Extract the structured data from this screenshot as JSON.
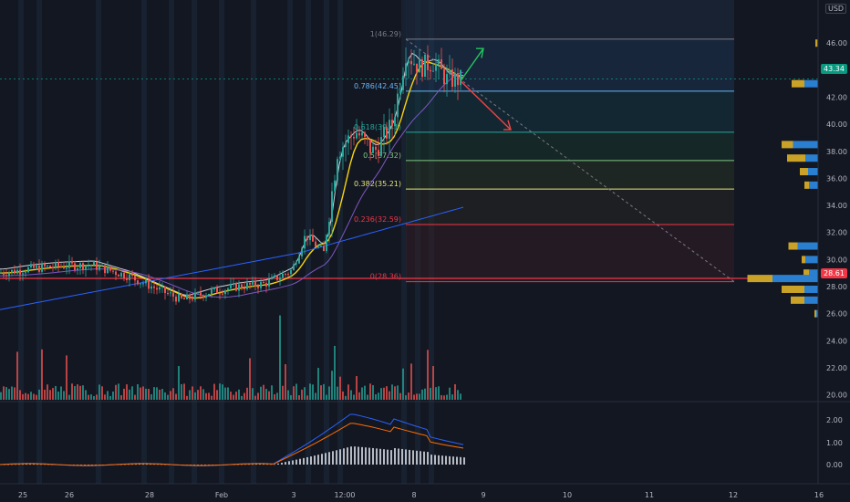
{
  "currency": "USD",
  "price_badges": {
    "last": "43.34",
    "level": "28.61"
  },
  "fib_labels": [
    {
      "text": "1(46.29)",
      "price": 46.29,
      "color": "#787b86"
    },
    {
      "text": "0.786(42.45)",
      "price": 42.45,
      "color": "#64b5f6"
    },
    {
      "text": "0.618(39.41)",
      "price": 39.41,
      "color": "#26a69a"
    },
    {
      "text": "0.5(37.32)",
      "price": 37.32,
      "color": "#81c784"
    },
    {
      "text": "0.382(35.21)",
      "price": 35.21,
      "color": "#e4e77a"
    },
    {
      "text": "0.236(32.59)",
      "price": 32.59,
      "color": "#f23645"
    },
    {
      "text": "0(28.36)",
      "price": 28.36,
      "color": "#f23645"
    }
  ],
  "chart_data": {
    "type": "candlestick",
    "price_axis": {
      "ticks": [
        "46.00",
        "44.00",
        "42.00",
        "40.00",
        "38.00",
        "36.00",
        "34.00",
        "32.00",
        "30.00",
        "28.00",
        "26.00",
        "24.00",
        "22.00",
        "20.00"
      ],
      "ylim": [
        19.5,
        47.5
      ]
    },
    "indicator_axis": {
      "ticks": [
        "2.00",
        "1.00",
        "0.00"
      ]
    },
    "time_axis": {
      "ticks": [
        "25",
        "26",
        "28",
        "Feb",
        "3",
        "12:00",
        "8",
        "9",
        "10",
        "11",
        "12",
        "16"
      ]
    },
    "price_path": [
      [
        0,
        29.0
      ],
      [
        30,
        29.3
      ],
      [
        60,
        29.5
      ],
      [
        100,
        29.6
      ],
      [
        140,
        28.8
      ],
      [
        180,
        27.6
      ],
      [
        200,
        27.0
      ],
      [
        230,
        27.6
      ],
      [
        260,
        28.0
      ],
      [
        290,
        28.2
      ],
      [
        320,
        29.2
      ],
      [
        335,
        31.8
      ],
      [
        355,
        30.5
      ],
      [
        370,
        38.0
      ],
      [
        390,
        39.5
      ],
      [
        410,
        37.9
      ],
      [
        430,
        40.0
      ],
      [
        445,
        45.3
      ],
      [
        460,
        44.2
      ],
      [
        475,
        44.6
      ],
      [
        490,
        43.3
      ],
      [
        505,
        43.3
      ]
    ],
    "volume_profile": [
      {
        "price": 46.0,
        "up": 2,
        "down": 4
      },
      {
        "price": 43.0,
        "up": 30,
        "down": 28
      },
      {
        "price": 38.5,
        "up": 55,
        "down": 25
      },
      {
        "price": 37.5,
        "up": 28,
        "down": 40
      },
      {
        "price": 36.5,
        "up": 22,
        "down": 18
      },
      {
        "price": 35.5,
        "up": 20,
        "down": 10
      },
      {
        "price": 31.0,
        "up": 45,
        "down": 20
      },
      {
        "price": 30.0,
        "up": 28,
        "down": 8
      },
      {
        "price": 29.0,
        "up": 20,
        "down": 12
      },
      {
        "price": 28.6,
        "up": 100,
        "down": 55
      },
      {
        "price": 27.8,
        "up": 30,
        "down": 50
      },
      {
        "price": 27.0,
        "up": 30,
        "down": 30
      },
      {
        "price": 26.0,
        "up": 4,
        "down": 4
      }
    ]
  }
}
